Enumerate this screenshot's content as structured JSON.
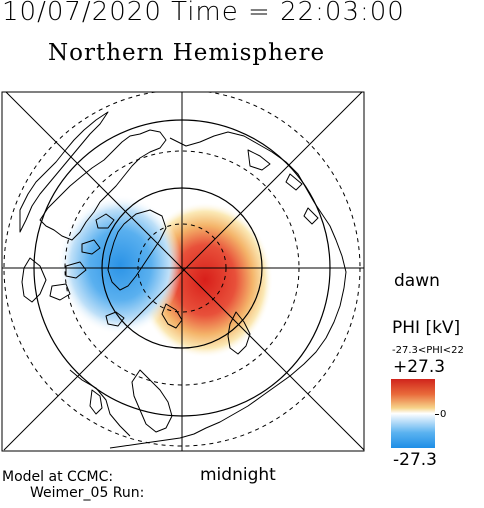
{
  "header": {
    "timestamp": "10/07/2020 Time = 22:03:00",
    "hemisphere": "Northern Hemisphere"
  },
  "map": {
    "dawn_label": "dawn",
    "midnight_label": "midnight",
    "field_colors": {
      "positive": "#d0241c",
      "negative": "#1e8ee6"
    }
  },
  "colorbar": {
    "title": "PHI [kV]",
    "range_text": "-27.3<PHI<22",
    "max_label": "+27.3",
    "min_label": "-27.3",
    "zero_label": "0"
  },
  "credits": {
    "line1": "Model at CCMC:",
    "line2": "Weimer_05 Run:"
  }
}
